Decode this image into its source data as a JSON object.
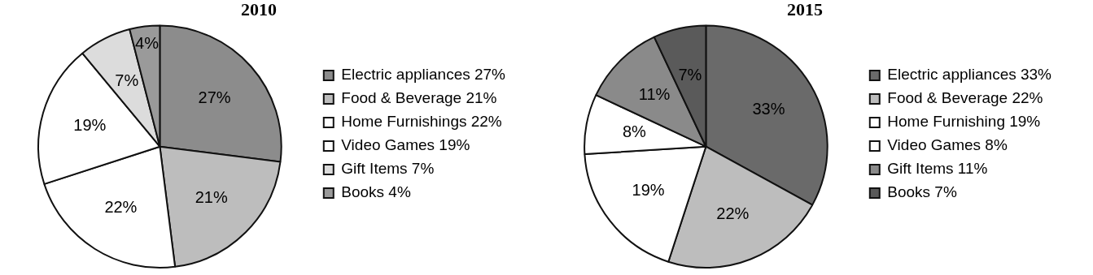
{
  "chart_data": [
    {
      "type": "pie",
      "title": "2010",
      "categories": [
        "Electric appliances 27%",
        "Food & Beverage 21%",
        "Home Furnishings 22%",
        "Video Games 19%",
        "Gift Items 7%",
        "Books 4%"
      ],
      "values": [
        27,
        21,
        22,
        19,
        7,
        4
      ],
      "colors": [
        "#8c8c8c",
        "#bdbdbd",
        "#ffffff",
        "#ffffff",
        "#dcdcdc",
        "#9a9a9a"
      ],
      "value_labels": [
        "27%",
        "21%",
        "22%",
        "19%",
        "7%",
        "4%"
      ],
      "legend": "right"
    },
    {
      "type": "pie",
      "title": "2015",
      "categories": [
        "Electric appliances 33%",
        "Food & Beverage 22%",
        "Home Furnishing 19%",
        "Video Games 8%",
        "Gift Items 11%",
        "Books 7%"
      ],
      "values": [
        33,
        22,
        19,
        8,
        11,
        7
      ],
      "colors": [
        "#6a6a6a",
        "#bdbdbd",
        "#ffffff",
        "#ffffff",
        "#8a8a8a",
        "#5a5a5a"
      ],
      "value_labels": [
        "33%",
        "22%",
        "19%",
        "8%",
        "11%",
        "7%"
      ],
      "legend": "right"
    }
  ]
}
